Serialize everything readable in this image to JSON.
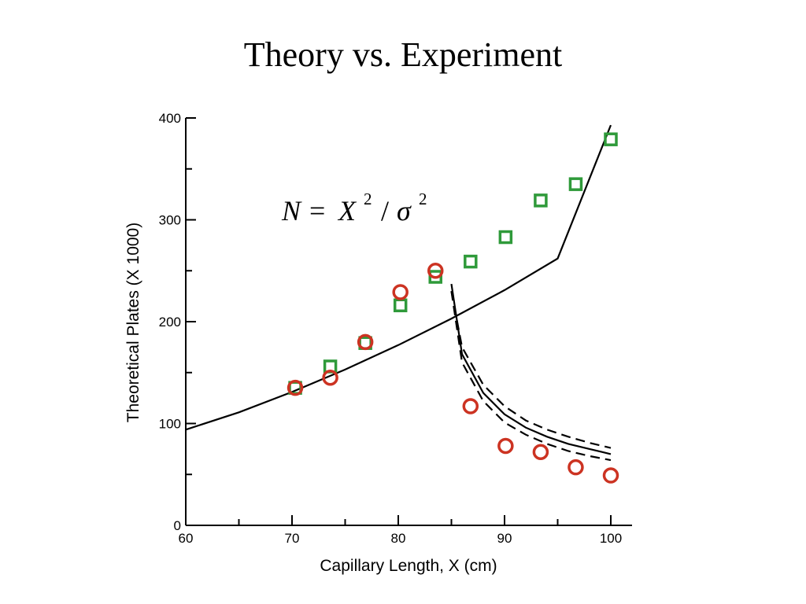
{
  "slide": {
    "title": "Theory vs. Experiment"
  },
  "chart_data": {
    "type": "scatter",
    "xlabel": "Capillary Length, X (cm)",
    "ylabel": "Theoretical Plates (X 1000)",
    "xlim": [
      60,
      100
    ],
    "ylim": [
      0,
      400
    ],
    "x_major_ticks": [
      60,
      70,
      80,
      90,
      100
    ],
    "x_tick_labels": [
      "60",
      "70",
      "80",
      "90",
      "100"
    ],
    "y_major_ticks": [
      0,
      100,
      200,
      300,
      400
    ],
    "y_tick_labels": [
      "0",
      "100",
      "200",
      "300",
      "400"
    ],
    "formula": {
      "lhs": "N",
      "eq": "=",
      "var": "X",
      "exp": "2",
      "slash": "/",
      "sigma": "σ",
      "sigma_exp": "2"
    },
    "series": [
      {
        "marker": "square",
        "color": "#2f9a3a",
        "x": [
          70.3,
          73.6,
          76.9,
          80.2,
          83.5,
          86.8,
          90.1,
          93.4,
          96.7,
          100.0
        ],
        "y": [
          135,
          156,
          179,
          216,
          244,
          259,
          283,
          319,
          335,
          379
        ]
      },
      {
        "marker": "circle",
        "color": "#cc3322",
        "x": [
          70.3,
          73.6,
          76.9,
          80.2,
          83.5,
          86.8,
          90.1,
          93.4,
          96.7,
          100.0
        ],
        "y": [
          135,
          145,
          180,
          229,
          250,
          117,
          78,
          72,
          57,
          49
        ]
      }
    ],
    "lines": [
      {
        "style": "solid",
        "color": "#000000",
        "x": [
          60,
          65,
          70,
          75,
          80,
          85,
          90,
          95,
          100
        ],
        "y": [
          94,
          111,
          131,
          153,
          177,
          203,
          231,
          262,
          393
        ]
      },
      {
        "style": "solid",
        "color": "#000000",
        "x": [
          85,
          86,
          88,
          90,
          92,
          94,
          96,
          98,
          100
        ],
        "y": [
          237,
          168,
          130,
          109,
          96,
          87,
          80,
          75,
          70
        ]
      },
      {
        "style": "dashed",
        "color": "#000000",
        "x": [
          85,
          86,
          88,
          90,
          92,
          94,
          96,
          98,
          100
        ],
        "y": [
          230,
          175,
          138,
          117,
          103,
          94,
          87,
          81,
          76
        ]
      },
      {
        "style": "dashed",
        "color": "#000000",
        "x": [
          85,
          86,
          88,
          90,
          92,
          94,
          96,
          98,
          100
        ],
        "y": [
          230,
          160,
          122,
          101,
          89,
          80,
          73,
          68,
          64
        ]
      }
    ],
    "legend": "none",
    "grid": false
  }
}
